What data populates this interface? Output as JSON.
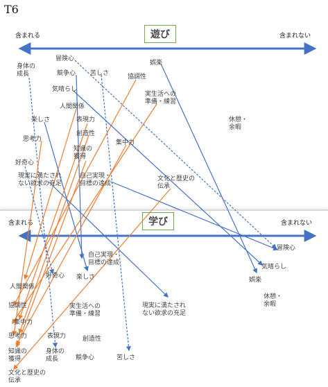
{
  "page_label": "T6",
  "top": {
    "title": "遊び",
    "left_end": "含まれる",
    "right_end": "含まれない",
    "items": [
      {
        "id": "shintai",
        "label": "身体の\n成長"
      },
      {
        "id": "boken",
        "label": "冒険心"
      },
      {
        "id": "kyoso",
        "label": "競争心"
      },
      {
        "id": "kurushisa",
        "label": "苦しさ"
      },
      {
        "id": "kyochou",
        "label": "協調性"
      },
      {
        "id": "goraku",
        "label": "娯楽"
      },
      {
        "id": "kibarashi",
        "label": "気晴らし"
      },
      {
        "id": "jisseikatsu",
        "label": "実生活への\n準備・練習"
      },
      {
        "id": "ningen",
        "label": "人間関係"
      },
      {
        "id": "tanoshisa",
        "label": "楽しさ"
      },
      {
        "id": "hyogen",
        "label": "表現力"
      },
      {
        "id": "kyukei",
        "label": "休憩・\n余暇"
      },
      {
        "id": "sozo",
        "label": "創造性"
      },
      {
        "id": "shiko",
        "label": "思考力"
      },
      {
        "id": "chishiki",
        "label": "知識の\n獲得"
      },
      {
        "id": "shuchu",
        "label": "集中力"
      },
      {
        "id": "kokishin",
        "label": "好奇心"
      },
      {
        "id": "genjitsu",
        "label": "現実に満たされ\nない欲求の充足"
      },
      {
        "id": "jiko",
        "label": "自己実現・\n目標の達成"
      },
      {
        "id": "bunka",
        "label": "文化と歴史の\n伝承"
      }
    ]
  },
  "bottom": {
    "title": "学び",
    "left_end": "含まれる",
    "right_end": "含まれない",
    "items": [
      {
        "id": "boken",
        "label": "冒険心"
      },
      {
        "id": "jiko",
        "label": "自己実現・\n目標の達成"
      },
      {
        "id": "kibarashi",
        "label": "気晴らし"
      },
      {
        "id": "kokishin",
        "label": "好奇心"
      },
      {
        "id": "tanoshisa",
        "label": "楽しさ"
      },
      {
        "id": "goraku",
        "label": "娯楽"
      },
      {
        "id": "ningen",
        "label": "人間関係"
      },
      {
        "id": "kyukei",
        "label": "休憩・\n余暇"
      },
      {
        "id": "kyochou",
        "label": "協調性"
      },
      {
        "id": "jisseikatsu",
        "label": "実生活への\n準備・練習"
      },
      {
        "id": "genjitsu",
        "label": "現実に満たされ\nない欲求の充足"
      },
      {
        "id": "shuchu",
        "label": "集中力"
      },
      {
        "id": "shiko",
        "label": "思考力"
      },
      {
        "id": "hyogen",
        "label": "表現力"
      },
      {
        "id": "sozo",
        "label": "創造性"
      },
      {
        "id": "chishiki",
        "label": "知識の\n獲得"
      },
      {
        "id": "shintai",
        "label": "身体の\n成長"
      },
      {
        "id": "kyoso",
        "label": "競争心"
      },
      {
        "id": "kurushisa",
        "label": "苦しさ"
      },
      {
        "id": "bunka",
        "label": "文化と歴史の\n伝承"
      }
    ]
  },
  "colors": {
    "axis": "#4472c4",
    "link_blue": "#4472c4",
    "link_orange": "#ed7d31",
    "title_border": "#70ad47"
  },
  "links": [
    {
      "id": "shintai",
      "style": "dashed",
      "color": "blue"
    },
    {
      "id": "boken",
      "style": "dashed",
      "color": "blue"
    },
    {
      "id": "kyoso",
      "style": "solid",
      "color": "blue"
    },
    {
      "id": "kurushisa",
      "style": "dashed",
      "color": "blue"
    },
    {
      "id": "kyochou",
      "style": "solid",
      "color": "orange"
    },
    {
      "id": "goraku",
      "style": "solid",
      "color": "blue"
    },
    {
      "id": "kibarashi",
      "style": "solid",
      "color": "blue"
    },
    {
      "id": "jisseikatsu",
      "style": "solid",
      "color": "orange"
    },
    {
      "id": "ningen",
      "style": "solid",
      "color": "orange"
    },
    {
      "id": "tanoshisa",
      "style": "solid",
      "color": "blue"
    },
    {
      "id": "hyogen",
      "style": "solid",
      "color": "orange"
    },
    {
      "id": "sozo",
      "style": "solid",
      "color": "orange"
    },
    {
      "id": "shiko",
      "style": "solid",
      "color": "orange"
    },
    {
      "id": "chishiki",
      "style": "solid",
      "color": "orange"
    },
    {
      "id": "shuchu",
      "style": "solid",
      "color": "orange"
    },
    {
      "id": "kokishin",
      "style": "dashed",
      "color": "blue"
    },
    {
      "id": "genjitsu",
      "style": "solid",
      "color": "blue"
    },
    {
      "id": "jiko",
      "style": "solid",
      "color": "blue"
    },
    {
      "id": "bunka",
      "style": "solid",
      "color": "orange"
    }
  ]
}
